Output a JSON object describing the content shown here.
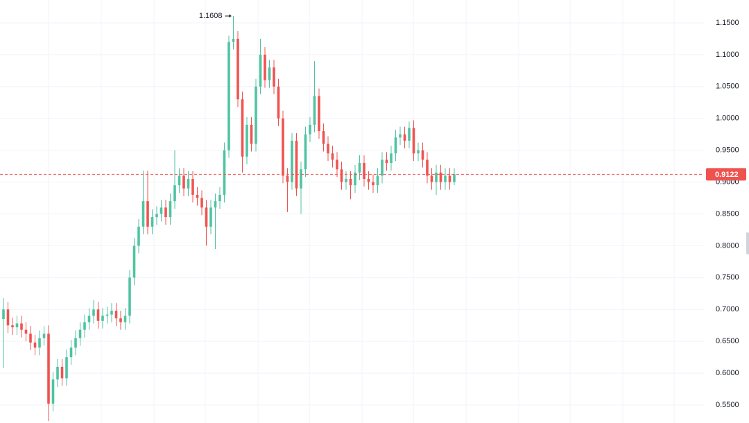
{
  "chart_data": {
    "type": "candlestick",
    "up_color": "#4fc3a1",
    "down_color": "#ef5350",
    "grid": true,
    "ylim": [
      0.5217,
      1.1859
    ],
    "yticks": [
      {
        "value": 0.55,
        "label": "0.5500"
      },
      {
        "value": 0.6,
        "label": "0.6000"
      },
      {
        "value": 0.65,
        "label": "0.6500"
      },
      {
        "value": 0.7,
        "label": "0.7000"
      },
      {
        "value": 0.75,
        "label": "0.7500"
      },
      {
        "value": 0.8,
        "label": "0.8000"
      },
      {
        "value": 0.85,
        "label": "0.8500"
      },
      {
        "value": 0.9,
        "label": "0.9000"
      },
      {
        "value": 0.95,
        "label": "0.9500"
      },
      {
        "value": 1.0,
        "label": "1.0000"
      },
      {
        "value": 1.05,
        "label": "1.0500"
      },
      {
        "value": 1.1,
        "label": "1.1000"
      },
      {
        "value": 1.15,
        "label": "1.1500"
      }
    ],
    "high_marker": 1.1608,
    "current_price": 0.9122,
    "open": [
      0.685,
      0.7,
      0.675,
      0.672,
      0.678,
      0.668,
      0.662,
      0.648,
      0.64,
      0.655,
      0.662,
      0.552,
      0.59,
      0.61,
      0.592,
      0.625,
      0.64,
      0.655,
      0.668,
      0.68,
      0.69,
      0.7,
      0.682,
      0.69,
      0.692,
      0.698,
      0.686,
      0.68,
      0.69,
      0.75,
      0.8,
      0.83,
      0.87,
      0.83,
      0.845,
      0.85,
      0.86,
      0.845,
      0.87,
      0.895,
      0.91,
      0.89,
      0.905,
      0.88,
      0.875,
      0.86,
      0.83,
      0.86,
      0.87,
      0.88,
      0.95,
      1.12,
      1.125,
      1.03,
      0.94,
      0.99,
      0.96,
      1.05,
      1.1,
      1.06,
      1.08,
      1.05,
      1.0,
      0.91,
      0.9,
      0.965,
      0.89,
      0.92,
      0.975,
      0.99,
      1.035,
      0.98,
      0.96,
      0.945,
      0.935,
      0.92,
      0.9,
      0.905,
      0.895,
      0.915,
      0.93,
      0.905,
      0.9,
      0.895,
      0.91,
      0.935,
      0.93,
      0.945,
      0.97,
      0.975,
      0.965,
      0.985,
      0.945,
      0.95,
      0.935,
      0.91,
      0.9,
      0.915,
      0.9,
      0.91,
      0.9
    ],
    "high": [
      0.718,
      0.712,
      0.687,
      0.69,
      0.69,
      0.68,
      0.674,
      0.66,
      0.667,
      0.674,
      0.675,
      0.602,
      0.622,
      0.622,
      0.637,
      0.652,
      0.667,
      0.68,
      0.692,
      0.702,
      0.715,
      0.712,
      0.702,
      0.704,
      0.71,
      0.71,
      0.698,
      0.702,
      0.762,
      0.812,
      0.842,
      0.918,
      0.918,
      0.857,
      0.862,
      0.872,
      0.872,
      0.882,
      0.95,
      0.922,
      0.922,
      0.917,
      0.917,
      0.892,
      0.887,
      0.872,
      0.872,
      0.882,
      0.892,
      0.962,
      1.13,
      1.1608,
      1.137,
      1.042,
      1.002,
      1.002,
      1.062,
      1.125,
      1.112,
      1.092,
      1.092,
      1.062,
      1.012,
      0.922,
      0.977,
      0.977,
      0.932,
      0.987,
      1.002,
      1.09,
      1.047,
      0.992,
      0.972,
      0.957,
      0.947,
      0.932,
      0.917,
      0.917,
      0.927,
      0.942,
      0.942,
      0.917,
      0.912,
      0.922,
      0.947,
      0.947,
      0.957,
      0.982,
      0.987,
      0.987,
      0.995,
      0.997,
      0.962,
      0.962,
      0.947,
      0.922,
      0.927,
      0.927,
      0.922,
      0.922,
      0.922
    ],
    "low": [
      0.608,
      0.663,
      0.66,
      0.66,
      0.656,
      0.65,
      0.636,
      0.628,
      0.628,
      0.643,
      0.525,
      0.54,
      0.578,
      0.58,
      0.58,
      0.613,
      0.628,
      0.643,
      0.656,
      0.668,
      0.678,
      0.67,
      0.67,
      0.678,
      0.68,
      0.674,
      0.668,
      0.668,
      0.678,
      0.738,
      0.788,
      0.818,
      0.818,
      0.818,
      0.833,
      0.838,
      0.833,
      0.833,
      0.858,
      0.883,
      0.878,
      0.878,
      0.868,
      0.863,
      0.848,
      0.8,
      0.818,
      0.795,
      0.858,
      0.868,
      0.938,
      1.108,
      1.018,
      0.915,
      0.928,
      0.948,
      0.948,
      1.038,
      1.048,
      1.048,
      1.038,
      0.988,
      0.898,
      0.853,
      0.888,
      0.878,
      0.85,
      0.908,
      0.963,
      0.978,
      0.968,
      0.948,
      0.933,
      0.923,
      0.908,
      0.888,
      0.888,
      0.873,
      0.883,
      0.903,
      0.893,
      0.888,
      0.883,
      0.883,
      0.898,
      0.918,
      0.918,
      0.933,
      0.958,
      0.953,
      0.953,
      0.933,
      0.933,
      0.923,
      0.898,
      0.888,
      0.88,
      0.888,
      0.888,
      0.888,
      0.895
    ],
    "close": [
      0.7,
      0.675,
      0.672,
      0.678,
      0.668,
      0.662,
      0.648,
      0.64,
      0.655,
      0.662,
      0.552,
      0.59,
      0.61,
      0.592,
      0.625,
      0.64,
      0.655,
      0.668,
      0.68,
      0.69,
      0.7,
      0.682,
      0.69,
      0.692,
      0.698,
      0.686,
      0.68,
      0.69,
      0.75,
      0.8,
      0.83,
      0.87,
      0.83,
      0.845,
      0.85,
      0.86,
      0.845,
      0.87,
      0.895,
      0.91,
      0.89,
      0.905,
      0.88,
      0.875,
      0.86,
      0.83,
      0.86,
      0.87,
      0.88,
      0.95,
      1.12,
      1.125,
      1.03,
      0.94,
      0.99,
      0.96,
      1.05,
      1.1,
      1.06,
      1.08,
      1.05,
      1.0,
      0.91,
      0.9,
      0.965,
      0.89,
      0.92,
      0.975,
      0.99,
      1.035,
      0.98,
      0.96,
      0.945,
      0.935,
      0.92,
      0.9,
      0.905,
      0.895,
      0.915,
      0.93,
      0.905,
      0.9,
      0.895,
      0.91,
      0.935,
      0.93,
      0.945,
      0.97,
      0.975,
      0.965,
      0.985,
      0.945,
      0.95,
      0.935,
      0.91,
      0.9,
      0.915,
      0.9,
      0.91,
      0.9,
      0.9122
    ]
  }
}
